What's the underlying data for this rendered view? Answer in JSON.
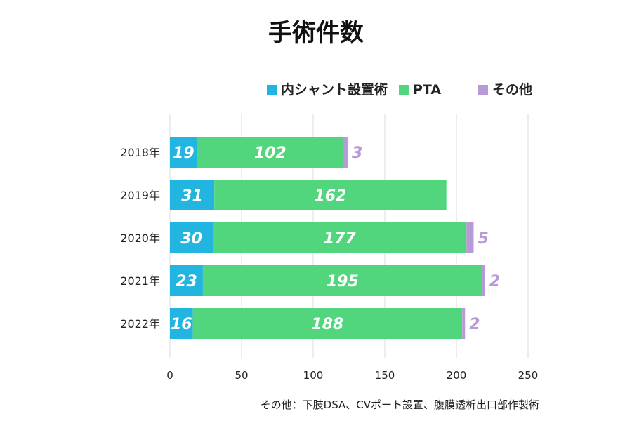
{
  "chart_data": {
    "type": "bar",
    "orientation": "horizontal",
    "stacked": true,
    "title": "手術件数",
    "categories": [
      "2018年",
      "2019年",
      "2020年",
      "2021年",
      "2022年"
    ],
    "series": [
      {
        "name": "内シャント設置術",
        "color": "#22b5e0",
        "values": [
          19,
          31,
          30,
          23,
          16
        ]
      },
      {
        "name": "PTA",
        "color": "#52d67d",
        "values": [
          102,
          162,
          177,
          195,
          188
        ]
      },
      {
        "name": "その他",
        "color": "#b99ad9",
        "values": [
          3,
          null,
          5,
          2,
          2
        ]
      }
    ],
    "xlim": [
      0,
      250
    ],
    "xticks": [
      "0",
      "50",
      "100",
      "150",
      "200",
      "250"
    ],
    "grid": true,
    "legend_position": "top-right",
    "footnote": "その他：下肢DSA、CVポート設置、腹膜透析出口部作製術"
  }
}
